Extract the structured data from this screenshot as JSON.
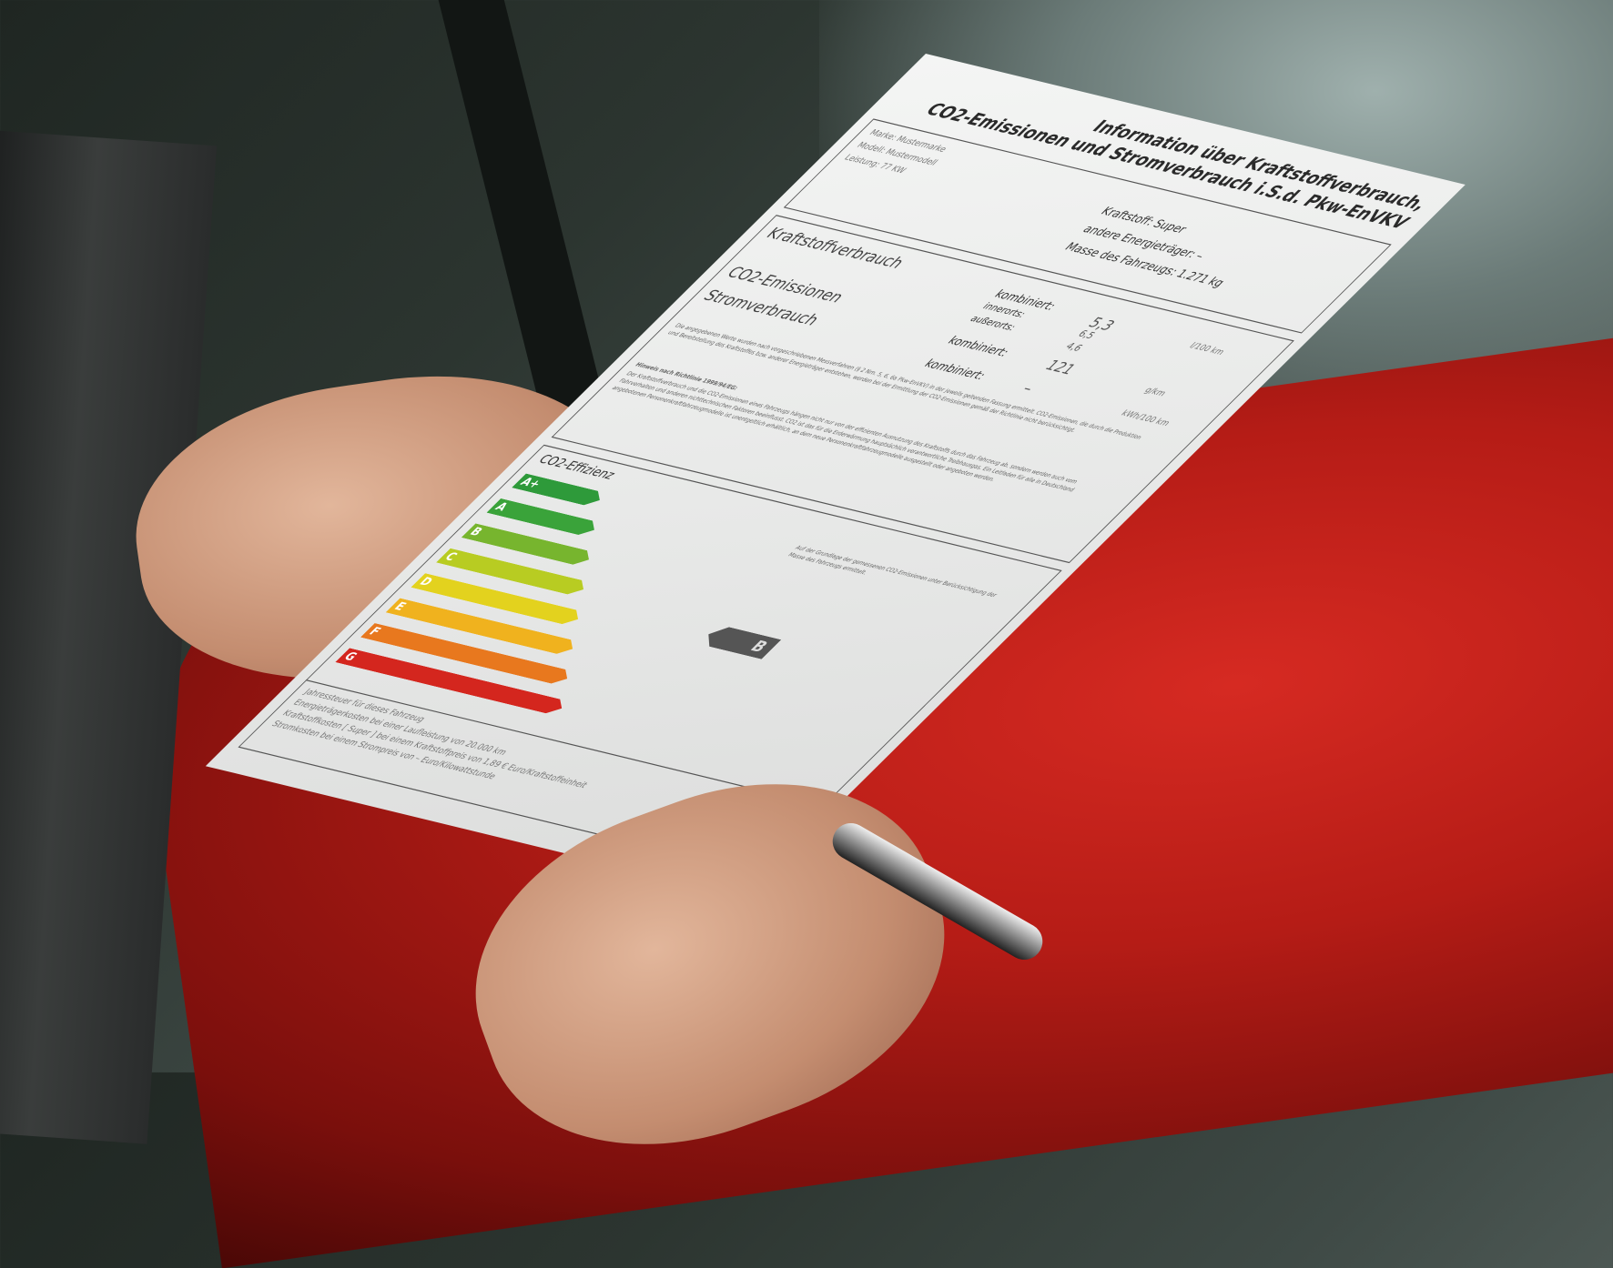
{
  "document": {
    "title_line1": "Information über Kraftstoffverbrauch,",
    "title_line2": "CO2-Emissionen und Stromverbrauch i.S.d. Pkw-EnVKV",
    "marke": "Marke: Mustermarke",
    "modell": "Modell: Mustermodell",
    "leistung": "Leistung: 77 KW",
    "kraftstoff": "Kraftstoff: Super",
    "andere": "andere Energieträger: –",
    "masse": "Masse des Fahrzeugs: 1.271 kg",
    "section_fuel": "Kraftstoffverbrauch",
    "section_co2": "CO2-Emissionen",
    "section_power": "Stromverbrauch",
    "kombiniert_label": "kombiniert:",
    "innerorts_label": "innerorts:",
    "ausserorts_label": "außerorts:",
    "fuel_combined": "5,3",
    "fuel_urban": "6,5",
    "fuel_extra_urban": "4,6",
    "unit_fuel": "l/100 km",
    "co2_combined": "121",
    "unit_co2": "g/km",
    "power_combined": "–",
    "unit_power": "kWh/100 km",
    "paragraph1": "Die angegebenen Werte wurden nach vorgeschriebenen Messverfahren (§ 2 Nrn. 5, 6, 6a Pkw-EnVKV) in der jeweils geltenden Fassung ermittelt. CO2-Emissionen, die durch die Produktion und Bereitstellung des Kraftstoffes bzw. anderer Energieträger entstehen, werden bei der Ermittlung der CO2-Emissionen gemäß der Richtlinie nicht berücksichtigt.",
    "paragraph2_head": "Hinweis nach Richtlinie 1999/94/EG:",
    "paragraph2": "Der Kraftstoffverbrauch und die CO2-Emissionen eines Fahrzeugs hängen nicht nur von der effizienten Ausnutzung des Kraftstoffs durch das Fahrzeug ab, sondern werden auch vom Fahrverhalten und anderen nichttechnischen Faktoren beeinflusst. CO2 ist das für die Erderwärmung hauptsächlich verantwortliche Treibhausgas. Ein Leitfaden für alle in Deutschland angebotenen Personenkraftfahrzeugmodelle ist unentgeltlich erhältlich, an dem neue Personenkraftfahrzeugmodelle ausgestellt oder angeboten werden.",
    "efficiency_title": "CO2-Effizienz",
    "efficiency_note": "Auf der Grundlage der gemessenen CO2-Emissionen unter Berücksichtigung der Masse des Fahrzeugs ermittelt.",
    "classes": [
      {
        "label": "A+",
        "color": "#2e9a3a"
      },
      {
        "label": "A",
        "color": "#3aa33a"
      },
      {
        "label": "B",
        "color": "#77b52e"
      },
      {
        "label": "C",
        "color": "#b8cc22"
      },
      {
        "label": "D",
        "color": "#e3d21e"
      },
      {
        "label": "E",
        "color": "#f0b21e"
      },
      {
        "label": "F",
        "color": "#e8781e"
      },
      {
        "label": "G",
        "color": "#d4261e"
      }
    ],
    "rating": "B",
    "footer1": "Jahressteuer für dieses Fahrzeug",
    "footer2": "Energieträgerkosten bei einer Laufleistung von 20.000 km",
    "footer3": "Kraftstoffkosten [ Super ] bei einem Kraftstoffpreis von 1,89 € Euro/Kraftstoffeinheit",
    "footer4": "Stromkosten bei einem Strompreis von – Euro/Kilowattstunde"
  }
}
